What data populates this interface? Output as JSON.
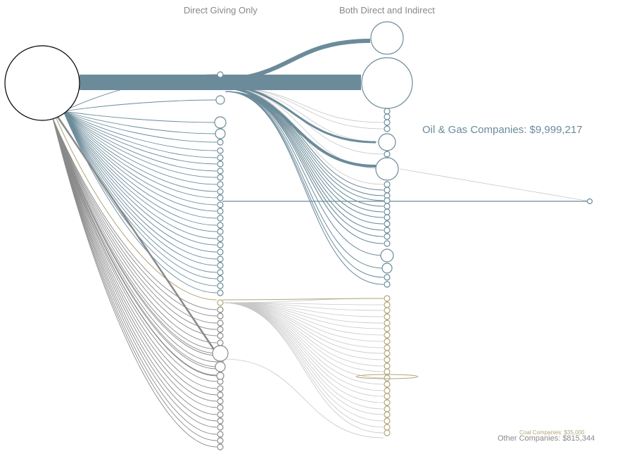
{
  "headers": {
    "direct_only": "Direct Giving Only",
    "both": "Both Direct and Indirect"
  },
  "legend": {
    "oil_gas": "Oil & Gas Companies: $9,999,217",
    "coal": "Coal Companies: $35,000",
    "other": "Other Companies: $815,344"
  },
  "colors": {
    "oil_gas": "#6b8b9a",
    "coal": "#b1a57a",
    "other": "#8a8a8a",
    "indirect_link": "#c8c8c8",
    "source_node": "#000000",
    "background": "#ffffff"
  }
}
